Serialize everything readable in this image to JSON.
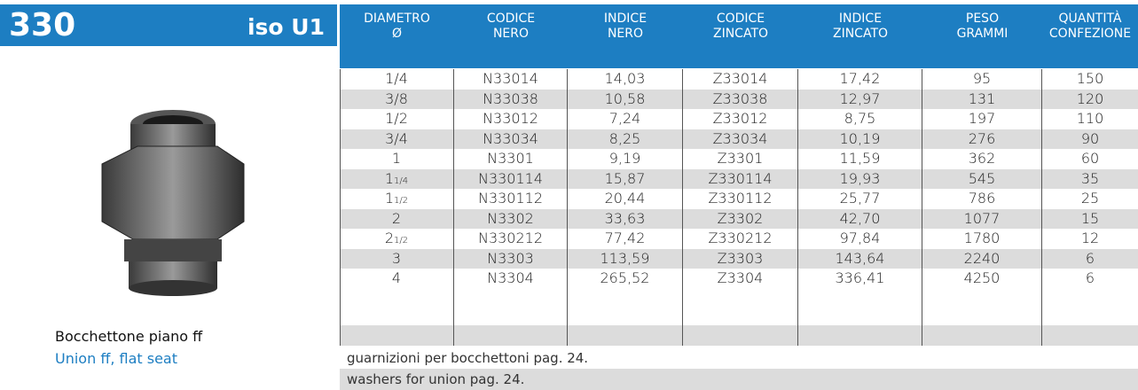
{
  "header": {
    "number": "330",
    "standard": "iso U1"
  },
  "product": {
    "name_it": "Bocchettone piano ff",
    "name_en": "Union ff, flat seat"
  },
  "table": {
    "columns": [
      [
        "DIAMETRO",
        "Ø"
      ],
      [
        "CODICE",
        "NERO"
      ],
      [
        "INDICE",
        "NERO"
      ],
      [
        "CODICE",
        "ZINCATO"
      ],
      [
        "INDICE",
        "ZINCATO"
      ],
      [
        "PESO",
        "GRAMMI"
      ],
      [
        "QUANTITÀ",
        "CONFEZIONE"
      ]
    ],
    "rows": [
      [
        {
          "whole": "1/4"
        },
        "N33014",
        "14,03",
        "Z33014",
        "17,42",
        "95",
        "150"
      ],
      [
        {
          "whole": "3/8"
        },
        "N33038",
        "10,58",
        "Z33038",
        "12,97",
        "131",
        "120"
      ],
      [
        {
          "whole": "1/2"
        },
        "N33012",
        "7,24",
        "Z33012",
        "8,75",
        "197",
        "110"
      ],
      [
        {
          "whole": "3/4"
        },
        "N33034",
        "8,25",
        "Z33034",
        "10,19",
        "276",
        "90"
      ],
      [
        {
          "whole": "1"
        },
        "N3301",
        "9,19",
        "Z3301",
        "11,59",
        "362",
        "60"
      ],
      [
        {
          "whole": "1",
          "fraction": "1/4"
        },
        "N330114",
        "15,87",
        "Z330114",
        "19,93",
        "545",
        "35"
      ],
      [
        {
          "whole": "1",
          "fraction": "1/2"
        },
        "N330112",
        "20,44",
        "Z330112",
        "25,77",
        "786",
        "25"
      ],
      [
        {
          "whole": "2"
        },
        "N3302",
        "33,63",
        "Z3302",
        "42,70",
        "1077",
        "15"
      ],
      [
        {
          "whole": "2",
          "fraction": "1/2"
        },
        "N330212",
        "77,42",
        "Z330212",
        "97,84",
        "1780",
        "12"
      ],
      [
        {
          "whole": "3"
        },
        "N3303",
        "113,59",
        "Z3303",
        "143,64",
        "2240",
        "6"
      ],
      [
        {
          "whole": "4"
        },
        "N3304",
        "265,52",
        "Z3304",
        "336,41",
        "4250",
        "6"
      ]
    ],
    "notes": [
      "guarnizioni per bocchettoni pag. 24.",
      "washers for union pag. 24."
    ]
  }
}
